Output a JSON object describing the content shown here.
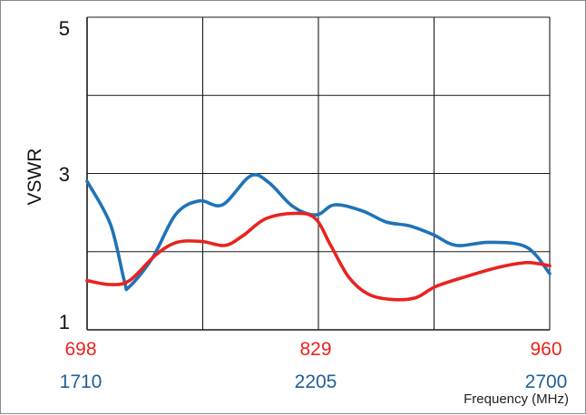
{
  "chart_data": {
    "type": "line",
    "ylabel": "VSWR",
    "xlabel": "Frequency (MHz)",
    "ylim": [
      1,
      5
    ],
    "y_ticks": [
      "5",
      "3",
      "1"
    ],
    "grid": true,
    "x_axes": [
      {
        "ticks": [
          "698",
          "829",
          "960"
        ],
        "min": 698,
        "max": 960,
        "color": "#e8231f"
      },
      {
        "ticks": [
          "1710",
          "2205",
          "2700"
        ],
        "min": 1710,
        "max": 2700,
        "color": "#1f5f96"
      }
    ],
    "series": [
      {
        "axis": 0,
        "color": "#e8231f",
        "x": [
          698,
          711,
          722,
          737,
          749,
          763,
          776,
          786,
          799,
          815,
          827,
          836,
          846,
          857,
          870,
          884,
          895,
          911,
          931,
          947,
          960
        ],
        "y": [
          1.63,
          1.58,
          1.63,
          1.96,
          2.12,
          2.13,
          2.08,
          2.2,
          2.42,
          2.49,
          2.43,
          2.08,
          1.68,
          1.46,
          1.39,
          1.41,
          1.55,
          1.67,
          1.8,
          1.86,
          1.82
        ]
      },
      {
        "axis": 1,
        "color": "#1f73b7",
        "x": [
          1710,
          1760,
          1790,
          1800,
          1850,
          1900,
          1950,
          2000,
          2060,
          2100,
          2150,
          2200,
          2240,
          2300,
          2350,
          2400,
          2450,
          2500,
          2570,
          2650,
          2700
        ],
        "y": [
          2.9,
          2.35,
          1.62,
          1.55,
          1.92,
          2.48,
          2.65,
          2.6,
          2.97,
          2.88,
          2.58,
          2.47,
          2.6,
          2.52,
          2.38,
          2.33,
          2.22,
          2.08,
          2.12,
          2.06,
          1.72
        ]
      }
    ]
  }
}
